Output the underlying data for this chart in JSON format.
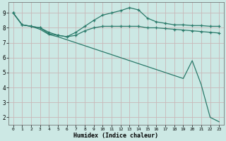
{
  "title": "",
  "xlabel": "Humidex (Indice chaleur)",
  "bg_color": "#cce8e4",
  "grid_color": "#c8b8b8",
  "line_color": "#2a7a6a",
  "xlim": [
    -0.5,
    23.5
  ],
  "ylim": [
    1.5,
    9.7
  ],
  "yticks": [
    2,
    3,
    4,
    5,
    6,
    7,
    8,
    9
  ],
  "xticks": [
    0,
    1,
    2,
    3,
    4,
    5,
    6,
    7,
    8,
    9,
    10,
    11,
    12,
    13,
    14,
    15,
    16,
    17,
    18,
    19,
    20,
    21,
    22,
    23
  ],
  "series": [
    {
      "x": [
        0,
        1,
        2,
        3,
        4,
        5,
        6,
        7,
        8,
        9,
        10,
        11,
        12,
        13,
        14,
        15,
        16,
        17,
        18,
        19,
        20,
        21,
        22,
        23
      ],
      "y": [
        9.0,
        8.2,
        8.1,
        8.0,
        7.7,
        7.5,
        7.4,
        7.7,
        8.1,
        8.5,
        8.85,
        9.0,
        9.15,
        9.35,
        9.2,
        8.65,
        8.4,
        8.3,
        8.2,
        8.2,
        8.15,
        8.15,
        8.1,
        8.1
      ],
      "marker": true
    },
    {
      "x": [
        0,
        1,
        2,
        3,
        4,
        5,
        6,
        7,
        8,
        9,
        10,
        11,
        12,
        13,
        14,
        15,
        16,
        17,
        18,
        19,
        20,
        21,
        22,
        23
      ],
      "y": [
        9.0,
        8.2,
        8.1,
        8.0,
        7.6,
        7.5,
        7.4,
        7.5,
        7.8,
        8.0,
        8.1,
        8.1,
        8.1,
        8.1,
        8.1,
        8.0,
        8.0,
        7.95,
        7.9,
        7.85,
        7.8,
        7.75,
        7.7,
        7.65
      ],
      "marker": true
    },
    {
      "x": [
        0,
        1,
        2,
        3,
        4,
        5,
        6,
        7,
        8,
        9,
        10,
        11,
        12,
        13,
        14,
        15,
        16,
        17,
        18,
        19,
        20,
        21,
        22,
        23
      ],
      "y": [
        9.0,
        8.2,
        8.1,
        7.9,
        7.55,
        7.4,
        7.2,
        7.0,
        6.8,
        6.6,
        6.4,
        6.2,
        6.0,
        5.8,
        5.6,
        5.4,
        5.2,
        5.0,
        4.8,
        4.6,
        5.8,
        4.2,
        2.0,
        1.7
      ],
      "marker": false
    }
  ]
}
